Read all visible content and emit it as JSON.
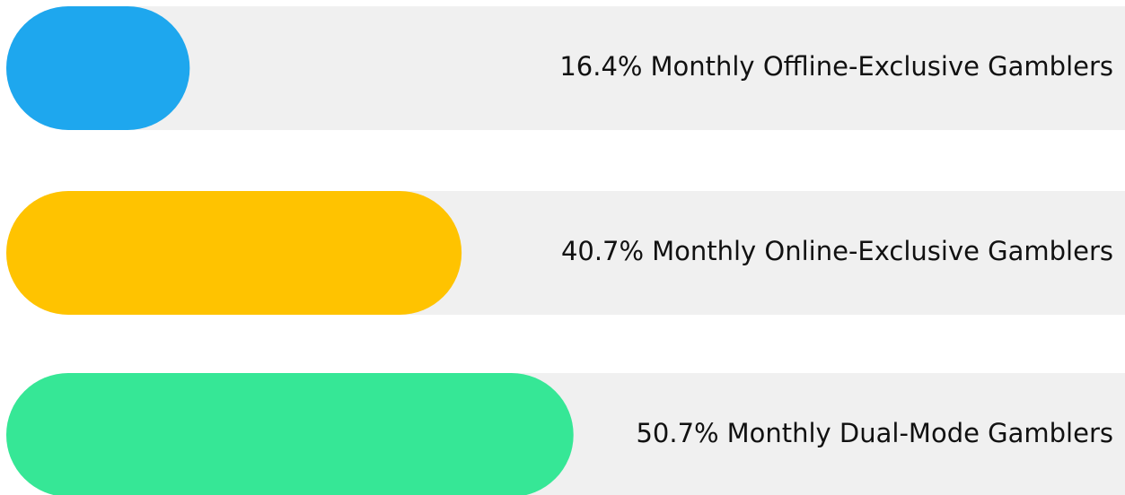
{
  "chart_data": {
    "type": "bar",
    "orientation": "horizontal",
    "categories": [
      "Monthly Offline-Exclusive Gamblers",
      "Monthly Online-Exclusive Gamblers",
      "Monthly Dual-Mode Gamblers"
    ],
    "values": [
      16.4,
      40.7,
      50.7
    ],
    "value_labels": [
      "16.4%",
      "40.7%",
      "50.7%"
    ],
    "colors": [
      "#1ea7ee",
      "#ffc300",
      "#36e796"
    ],
    "track_color": "#f0f0f0",
    "xlim": [
      0,
      100
    ]
  }
}
